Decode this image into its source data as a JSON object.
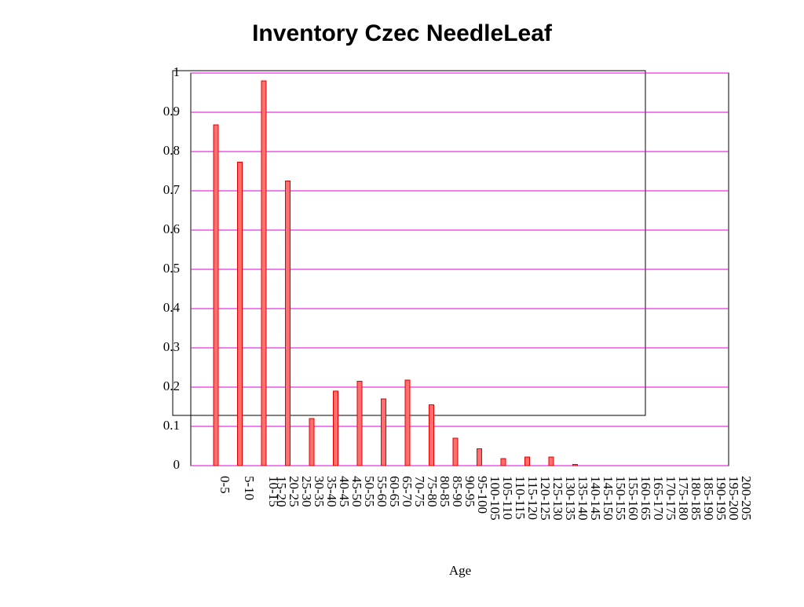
{
  "chart_data": {
    "type": "bar",
    "title": "Inventory Czec NeedleLeaf",
    "x_label": "Age",
    "categories": [
      "0-5",
      "5-10",
      "10-15",
      "15-20",
      "20-25",
      "25-30",
      "30-35",
      "35-40",
      "40-45",
      "45-50",
      "50-55",
      "55-60",
      "60-65",
      "65-70",
      "70-75",
      "75-80",
      "80-85",
      "85-90",
      "90-95",
      "95-100",
      "100-105",
      "105-110",
      "110-115",
      "115-120",
      "120-125",
      "125-130",
      "130-135",
      "135-140",
      "140-145",
      "145-150",
      "150-155",
      "155-160",
      "160-165",
      "165-170",
      "170-175",
      "175-180",
      "180-185",
      "185-190",
      "190-195",
      "195-200",
      "200-205"
    ],
    "values": [
      0.868,
      0.773,
      0.98,
      0.725,
      0.12,
      0.19,
      0.215,
      0.17,
      0.218,
      0.155,
      0.07,
      0.043,
      0.018,
      0.022,
      0.022,
      0.003,
      0,
      0,
      0,
      0,
      0,
      0,
      0,
      0,
      0,
      0,
      0,
      0,
      0,
      0,
      0,
      0,
      0,
      0,
      0,
      0,
      0,
      0,
      0,
      0,
      0
    ],
    "color": "#ff6f6f",
    "edge_color": "#e00000",
    "grid_color": "#e000e0",
    "ylim": [
      0,
      1
    ],
    "yticks": [
      0,
      0.1,
      0.2,
      0.3,
      0.4,
      0.5,
      0.6,
      0.7,
      0.8,
      0.9,
      1
    ],
    "grid": true
  }
}
